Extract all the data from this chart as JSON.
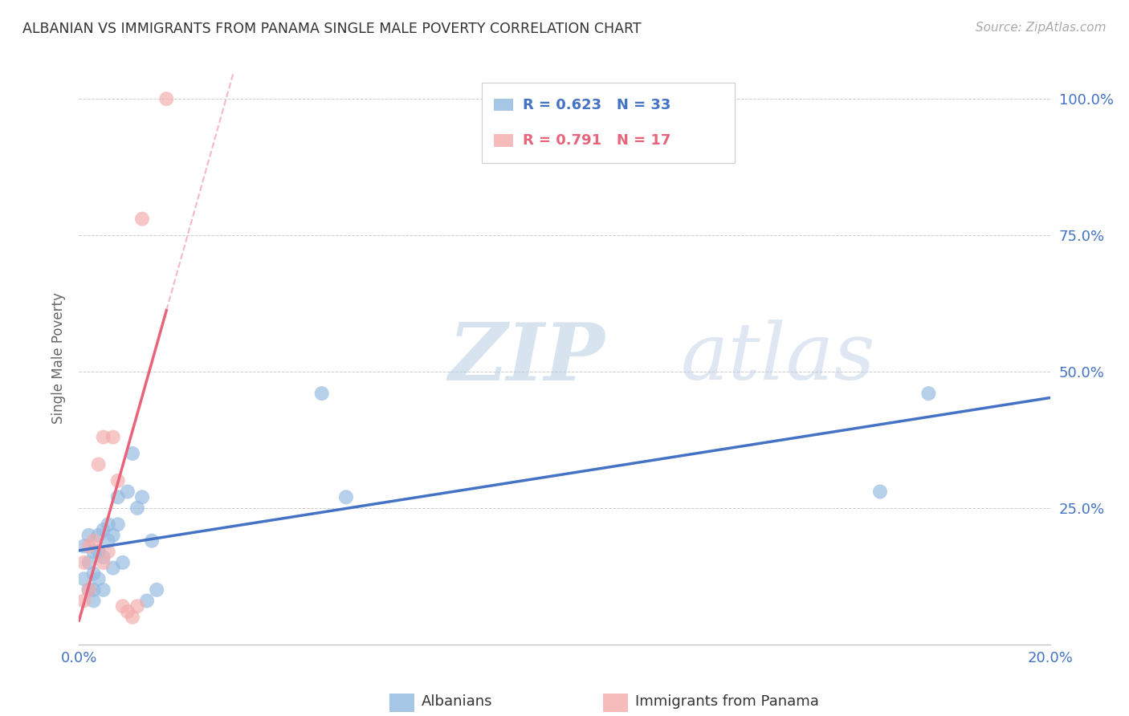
{
  "title": "ALBANIAN VS IMMIGRANTS FROM PANAMA SINGLE MALE POVERTY CORRELATION CHART",
  "source": "Source: ZipAtlas.com",
  "ylabel": "Single Male Poverty",
  "xlim": [
    0.0,
    0.2
  ],
  "ylim": [
    0.0,
    1.05
  ],
  "yticks": [
    0.0,
    0.25,
    0.5,
    0.75,
    1.0
  ],
  "ytick_labels": [
    "",
    "25.0%",
    "50.0%",
    "75.0%",
    "100.0%"
  ],
  "xticks": [
    0.0,
    0.04,
    0.08,
    0.12,
    0.16,
    0.2
  ],
  "xtick_labels": [
    "0.0%",
    "",
    "",
    "",
    "",
    "20.0%"
  ],
  "albanians_x": [
    0.001,
    0.001,
    0.002,
    0.002,
    0.002,
    0.003,
    0.003,
    0.003,
    0.003,
    0.004,
    0.004,
    0.004,
    0.005,
    0.005,
    0.005,
    0.006,
    0.006,
    0.007,
    0.007,
    0.008,
    0.008,
    0.009,
    0.01,
    0.011,
    0.012,
    0.013,
    0.014,
    0.015,
    0.016,
    0.05,
    0.055,
    0.165,
    0.175
  ],
  "albanians_y": [
    0.12,
    0.18,
    0.1,
    0.15,
    0.2,
    0.1,
    0.13,
    0.17,
    0.08,
    0.2,
    0.17,
    0.12,
    0.21,
    0.16,
    0.1,
    0.22,
    0.19,
    0.2,
    0.14,
    0.27,
    0.22,
    0.15,
    0.28,
    0.35,
    0.25,
    0.27,
    0.08,
    0.19,
    0.1,
    0.46,
    0.27,
    0.28,
    0.46
  ],
  "panama_x": [
    0.001,
    0.001,
    0.002,
    0.002,
    0.003,
    0.004,
    0.005,
    0.005,
    0.006,
    0.007,
    0.008,
    0.009,
    0.01,
    0.011,
    0.012,
    0.013,
    0.018
  ],
  "panama_y": [
    0.08,
    0.15,
    0.1,
    0.18,
    0.19,
    0.33,
    0.15,
    0.38,
    0.17,
    0.38,
    0.3,
    0.07,
    0.06,
    0.05,
    0.07,
    0.78,
    1.0
  ],
  "albanian_R": 0.623,
  "albanian_N": 33,
  "panama_R": 0.791,
  "panama_N": 17,
  "blue_color": "#90B8E0",
  "pink_color": "#F4AAAA",
  "blue_line_color": "#4472C4",
  "pink_line_color": "#E8647A",
  "legend_blue_text": "#4472C4",
  "legend_pink_text": "#E8647A",
  "background_color": "#FFFFFF",
  "grid_color": "#CCCCCC",
  "title_color": "#333333",
  "axis_label_color": "#666666",
  "tick_color_x": "#4472C4",
  "tick_color_y": "#4472C4"
}
